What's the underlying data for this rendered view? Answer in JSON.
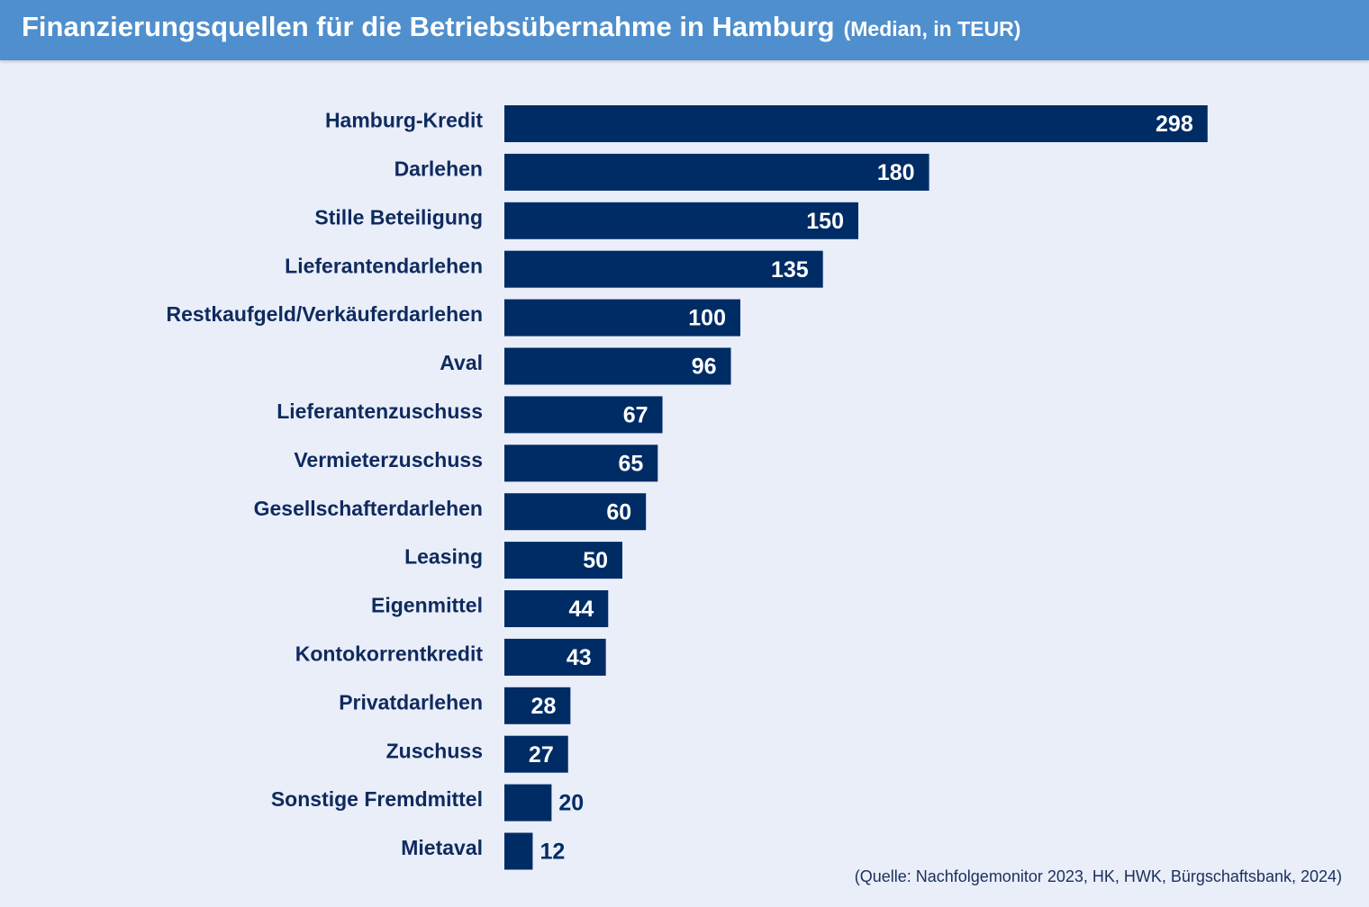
{
  "title": "Finanzierungsquellen für die Betriebsübernahme in Hamburg",
  "subtitle": "(Median, in TEUR)",
  "source": "(Quelle: Nachfolgemonitor 2023, HK, HWK, Bürgschaftsbank, 2024)",
  "colors": {
    "header": "#4f8fcd",
    "background": "#e9eef9",
    "bar": "#002c65",
    "label": "#0f2a5e",
    "value_inside": "#ffffff",
    "value_outside": "#002c65"
  },
  "chart_data": {
    "type": "bar",
    "orientation": "horizontal",
    "categories": [
      "Hamburg-Kredit",
      "Darlehen",
      "Stille Beteiligung",
      "Lieferantendarlehen",
      "Restkaufgeld/Verkäuferdarlehen",
      "Aval",
      "Lieferantenzuschuss",
      "Vermieterzuschuss",
      "Gesellschafterdarlehen",
      "Leasing",
      "Eigenmittel",
      "Kontokorrentkredit",
      "Privatdarlehen",
      "Zuschuss",
      "Sonstige Fremdmittel",
      "Mietaval"
    ],
    "values": [
      298,
      180,
      150,
      135,
      100,
      96,
      67,
      65,
      60,
      50,
      44,
      43,
      28,
      27,
      20,
      12
    ],
    "grid": false,
    "legend": "none",
    "data_labels": true
  }
}
